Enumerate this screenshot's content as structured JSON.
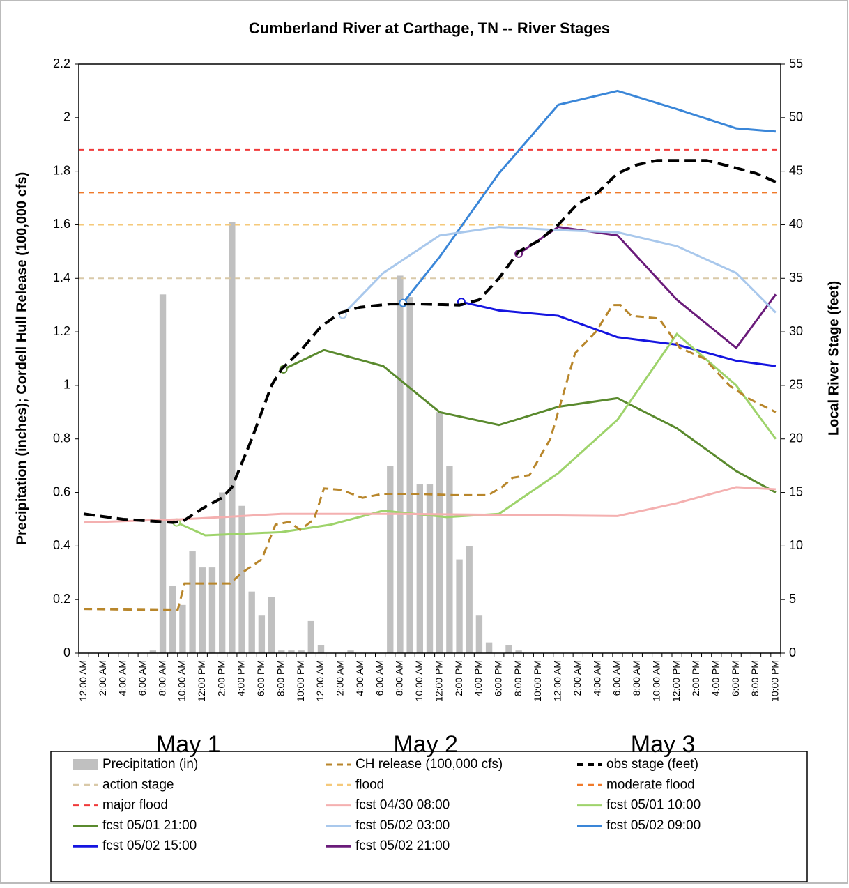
{
  "chart_data": {
    "type": "combo",
    "title": "Cumberland River at Carthage, TN -- River Stages",
    "y_label": "Precipitation (inches); Cordell Hull Release (100,000 cfs)",
    "y2_label": "Local River Stage (feet)",
    "categories": [
      "12:00 AM",
      null,
      "2:00 AM",
      null,
      "4:00 AM",
      null,
      "6:00 AM",
      null,
      "8:00 AM",
      null,
      "10:00 AM",
      null,
      "12:00 PM",
      null,
      "2:00 PM",
      null,
      "4:00 PM",
      null,
      "6:00 PM",
      null,
      "8:00 PM",
      null,
      "10:00 PM",
      null,
      "12:00 AM",
      null,
      "2:00 AM",
      null,
      "4:00 AM",
      null,
      "6:00 AM",
      null,
      "8:00 AM",
      null,
      "10:00 AM",
      null,
      "12:00 PM",
      null,
      "2:00 PM",
      null,
      "4:00 PM",
      null,
      "6:00 PM",
      null,
      "8:00 PM",
      null,
      "10:00 PM",
      null,
      "12:00 AM",
      null,
      "2:00 AM",
      null,
      "4:00 AM",
      null,
      "6:00 AM",
      null,
      "8:00 AM",
      null,
      "10:00 AM",
      null,
      "12:00 PM",
      null,
      "2:00 PM",
      null,
      "4:00 PM",
      null,
      "6:00 PM",
      null,
      "8:00 PM",
      null,
      "10:00 PM"
    ],
    "day_labels": [
      "May 1",
      "May 2",
      "May 3"
    ],
    "ylim": [
      0,
      2.2
    ],
    "yticks": [
      0,
      0.2,
      0.4,
      0.6,
      0.8,
      1,
      1.2,
      1.4,
      1.6,
      1.8,
      2,
      2.2
    ],
    "y2lim": [
      0,
      55
    ],
    "y2ticks": [
      0,
      5,
      10,
      15,
      20,
      25,
      30,
      35,
      40,
      45,
      50,
      55
    ],
    "series": [
      {
        "name": "Precipitation (in)",
        "kind": "bar",
        "color": "#c0c0c0",
        "values": [
          0,
          0,
          0,
          0,
          0,
          0,
          0,
          0.01,
          1.34,
          0.25,
          0.18,
          0.38,
          0.32,
          0.32,
          0.6,
          1.61,
          0.55,
          0.23,
          0.14,
          0.21,
          0.01,
          0.01,
          0.01,
          0.12,
          0.03,
          0,
          0,
          0.01,
          0,
          0,
          0,
          0.7,
          1.41,
          1.33,
          0.63,
          0.63,
          0.9,
          0.7,
          0.35,
          0.4,
          0.14,
          0.04,
          0,
          0.03,
          0.01,
          0,
          0,
          0,
          0,
          0,
          0,
          0,
          0,
          0,
          0,
          0,
          0,
          0,
          0,
          0,
          0,
          0,
          0,
          0,
          0,
          0,
          0,
          0,
          0,
          0,
          0
        ]
      },
      {
        "name": "CH release (100,000 cfs)",
        "kind": "line",
        "dash": true,
        "color": "#b8862b",
        "x": [
          0,
          9.5,
          10.2,
          14.8,
          16,
          18,
          19.4,
          20.8,
          21.9,
          23.3,
          24.3,
          26,
          28.2,
          30.3,
          33.9,
          37.4,
          40.9,
          42.3,
          43.4,
          45.1,
          47.2,
          49.7,
          51.8,
          53.5,
          54.3,
          55.4,
          58.2,
          60.3,
          62.8,
          65.3,
          67.3,
          70
        ],
        "values": [
          0.165,
          0.16,
          0.26,
          0.26,
          0.3,
          0.35,
          0.48,
          0.49,
          0.46,
          0.5,
          0.615,
          0.61,
          0.58,
          0.595,
          0.595,
          0.59,
          0.59,
          0.62,
          0.655,
          0.665,
          0.8,
          1.12,
          1.2,
          1.3,
          1.3,
          1.26,
          1.25,
          1.14,
          1.1,
          1,
          0.95,
          0.9
        ]
      },
      {
        "name": "obs stage (feet)",
        "kind": "line",
        "dash": true,
        "axis": "y2",
        "color": "#000000",
        "x": [
          0,
          4,
          9,
          10,
          12,
          14,
          15,
          17,
          19,
          20,
          22,
          24,
          26,
          28,
          31,
          34,
          38,
          40,
          42,
          44,
          46,
          48,
          50,
          52,
          54,
          56,
          58,
          63,
          66,
          68,
          70
        ],
        "values": [
          13,
          12.5,
          12.2,
          12.3,
          13.5,
          14.5,
          15.5,
          20,
          25,
          26.5,
          28.3,
          30.5,
          31.8,
          32.3,
          32.6,
          32.6,
          32.5,
          33,
          35,
          37.5,
          38.5,
          40,
          42,
          43,
          44.8,
          45.6,
          46,
          46,
          45.3,
          44.8,
          44
        ]
      },
      {
        "name": "action stage",
        "kind": "threshold",
        "axis": "y2",
        "color": "#d9c9a8",
        "value": 35
      },
      {
        "name": "flood",
        "kind": "threshold",
        "axis": "y2",
        "color": "#f5c97a",
        "value": 40
      },
      {
        "name": "moderate flood",
        "kind": "threshold",
        "axis": "y2",
        "color": "#f07a2a",
        "value": 43
      },
      {
        "name": "major flood",
        "kind": "threshold",
        "axis": "y2",
        "color": "#f03a3a",
        "value": 47
      },
      {
        "name": "fcst 04/30 08:00",
        "kind": "line",
        "axis": "y2",
        "color": "#f4b0b0",
        "x": [
          0,
          10,
          20,
          32,
          54,
          60,
          66,
          70
        ],
        "values": [
          12.2,
          12.5,
          13,
          13,
          12.8,
          14,
          15.5,
          15.3
        ]
      },
      {
        "name": "fcst 05/01 10:00",
        "kind": "line",
        "axis": "y2",
        "color": "#9ed36b",
        "start_marker": true,
        "x": [
          9.4,
          12.3,
          20,
          25,
          30.3,
          36.7,
          42,
          48,
          54,
          60,
          66,
          70
        ],
        "values": [
          12.2,
          11,
          11.3,
          12,
          13.3,
          12.7,
          13,
          16.8,
          21.8,
          29.8,
          25,
          20
        ]
      },
      {
        "name": "fcst 05/01 21:00",
        "kind": "line",
        "axis": "y2",
        "color": "#5a8a2e",
        "start_marker": true,
        "x": [
          20.2,
          24.3,
          30.3,
          36,
          42,
          48,
          54,
          60,
          66,
          70
        ],
        "values": [
          26.5,
          28.3,
          26.8,
          22.5,
          21.3,
          23,
          23.8,
          21,
          17,
          15
        ]
      },
      {
        "name": "fcst 05/02 03:00",
        "kind": "line",
        "axis": "y2",
        "color": "#a9c8ec",
        "start_marker": true,
        "x": [
          26.2,
          30.3,
          36,
          42,
          48,
          54,
          60,
          66,
          70
        ],
        "values": [
          31.6,
          35.5,
          39,
          39.8,
          39.5,
          39.3,
          38,
          35.5,
          31.8
        ]
      },
      {
        "name": "fcst 05/02 09:00",
        "kind": "line",
        "axis": "y2",
        "color": "#3a86d8",
        "start_marker": true,
        "x": [
          32.3,
          36,
          42,
          48,
          54,
          60,
          66,
          70
        ],
        "values": [
          32.7,
          37,
          44.8,
          51.2,
          52.5,
          50.8,
          49,
          48.7
        ]
      },
      {
        "name": "fcst 05/02 15:00",
        "kind": "line",
        "axis": "y2",
        "color": "#1515e0",
        "start_marker": true,
        "x": [
          38.2,
          42,
          48,
          54,
          60,
          66,
          70
        ],
        "values": [
          32.8,
          32,
          31.5,
          29.5,
          28.8,
          27.3,
          26.8
        ]
      },
      {
        "name": "fcst 05/02 21:00",
        "kind": "line",
        "axis": "y2",
        "color": "#6a1b7a",
        "start_marker": true,
        "x": [
          44,
          48,
          54,
          60,
          66,
          70
        ],
        "values": [
          37.3,
          39.8,
          39,
          33,
          28.5,
          33.5
        ]
      }
    ]
  }
}
